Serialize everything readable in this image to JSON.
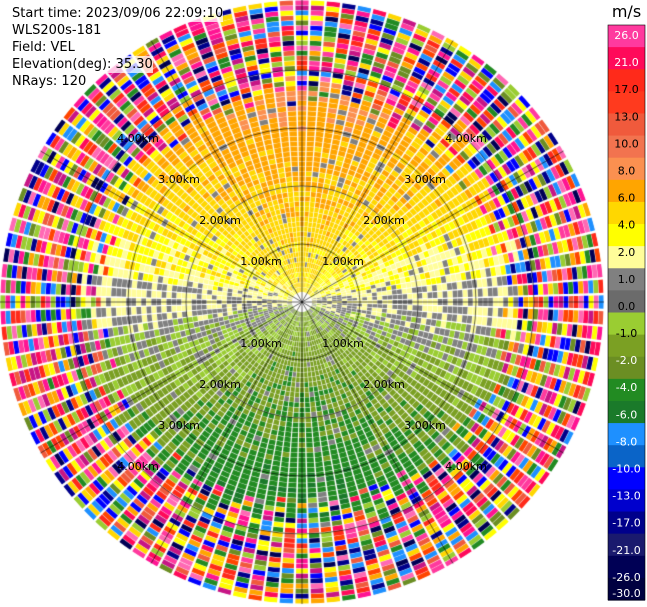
{
  "header": {
    "start_time": "Start time: 2023/09/06 22:09:10",
    "instrument": "WLS200s-181",
    "field": "Field: VEL",
    "elevation": "Elevation(deg): 35.30",
    "nrays": "NRays: 120"
  },
  "chart_data": {
    "type": "heatmap",
    "projection": "polar PPI",
    "field": "VEL",
    "nrays": 120,
    "range_rings_km": [
      1,
      2,
      3,
      4
    ],
    "ring_labels": [
      "1.00km",
      "2.00km",
      "3.00km",
      "4.00km"
    ],
    "colorbar": {
      "unit": "m/s",
      "vmin": -30.0,
      "vmax": 30.0,
      "ticks": [
        "26.0",
        "21.0",
        "17.0",
        "13.0",
        "10.0",
        "8.0",
        "6.0",
        "4.0",
        "2.0",
        "1.0",
        "0.0",
        "-1.0",
        "-2.0",
        "-4.0",
        "-6.0",
        "-8.0",
        "-10.0",
        "-13.0",
        "-17.0",
        "-21.0",
        "-26.0",
        "-30.0"
      ],
      "colors": [
        "#ff3a9e",
        "#ff0a5a",
        "#ff2a1a",
        "#ff3a1e",
        "#f05a3c",
        "#f2734f",
        "#fb9050",
        "#ffa500",
        "#ffd700",
        "#ffff00",
        "#fffd9a",
        "#808080",
        "#6b6b6b",
        "#9acd32",
        "#7ba023",
        "#6b8e23",
        "#228b22",
        "#1a7a2a",
        "#1e90ff",
        "#0a64c8",
        "#0000ff",
        "#0000cd",
        "#00008b",
        "#1a1a6e",
        "#000055",
        "#000040"
      ]
    }
  }
}
